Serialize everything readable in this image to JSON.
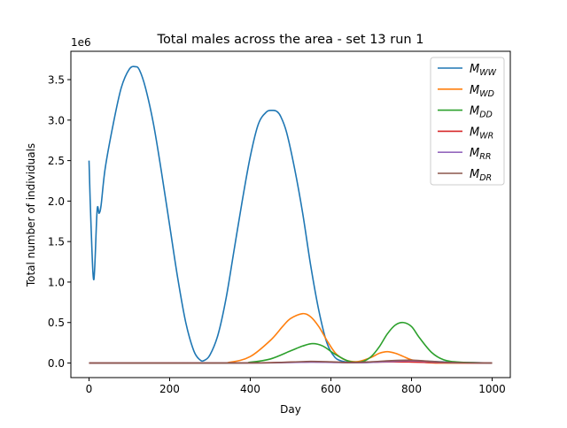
{
  "chart_data": {
    "type": "line",
    "title": "Total males across the area - set 13 run 1",
    "xlabel": "Day",
    "ylabel": "Total number of individuals",
    "y_multiplier_label": "1e6",
    "xlim": [
      -45,
      1045
    ],
    "ylim": [
      -0.18,
      3.85
    ],
    "x_ticks": [
      0,
      200,
      400,
      600,
      800,
      1000
    ],
    "x_tick_labels": [
      "0",
      "200",
      "400",
      "600",
      "800",
      "1000"
    ],
    "y_ticks": [
      0.0,
      0.5,
      1.0,
      1.5,
      2.0,
      2.5,
      3.0,
      3.5
    ],
    "y_tick_labels": [
      "0.0",
      "0.5",
      "1.0",
      "1.5",
      "2.0",
      "2.5",
      "3.0",
      "3.5"
    ],
    "grid": false,
    "legend_position": "top-right",
    "series": [
      {
        "name": "WW",
        "color": "#1f77b4",
        "x": [
          0,
          5,
          12,
          20,
          25,
          30,
          40,
          60,
          80,
          100,
          115,
          125,
          140,
          160,
          180,
          200,
          220,
          240,
          260,
          275,
          285,
          300,
          320,
          340,
          360,
          380,
          400,
          420,
          440,
          455,
          465,
          475,
          490,
          510,
          530,
          550,
          570,
          590,
          610,
          630,
          650,
          670,
          700,
          750,
          800,
          850,
          900,
          950,
          1000
        ],
        "y": [
          2.5,
          1.7,
          1.03,
          1.88,
          1.85,
          1.95,
          2.4,
          2.95,
          3.4,
          3.63,
          3.66,
          3.62,
          3.4,
          2.95,
          2.35,
          1.7,
          1.05,
          0.5,
          0.15,
          0.04,
          0.03,
          0.1,
          0.35,
          0.8,
          1.4,
          2.0,
          2.55,
          2.95,
          3.1,
          3.12,
          3.11,
          3.05,
          2.85,
          2.4,
          1.85,
          1.2,
          0.65,
          0.25,
          0.07,
          0.02,
          0.01,
          0.005,
          0.01,
          0.02,
          0.03,
          0.02,
          0.01,
          0.005,
          0.0
        ]
      },
      {
        "name": "WD",
        "color": "#ff7f0e",
        "x": [
          0,
          300,
          350,
          400,
          450,
          480,
          500,
          530,
          550,
          570,
          590,
          610,
          630,
          650,
          670,
          700,
          720,
          740,
          760,
          780,
          800,
          830,
          860,
          900,
          1000
        ],
        "y": [
          0,
          0,
          0.01,
          0.08,
          0.28,
          0.45,
          0.55,
          0.61,
          0.57,
          0.45,
          0.28,
          0.13,
          0.05,
          0.02,
          0.02,
          0.07,
          0.12,
          0.14,
          0.12,
          0.08,
          0.04,
          0.01,
          0.0,
          0.0,
          0.0
        ]
      },
      {
        "name": "DD",
        "color": "#2ca02c",
        "x": [
          0,
          350,
          400,
          450,
          500,
          530,
          555,
          580,
          610,
          640,
          660,
          680,
          700,
          720,
          740,
          760,
          780,
          800,
          820,
          850,
          880,
          920,
          1000
        ],
        "y": [
          0,
          0,
          0.01,
          0.05,
          0.15,
          0.21,
          0.24,
          0.21,
          0.11,
          0.03,
          0.01,
          0.02,
          0.08,
          0.2,
          0.36,
          0.47,
          0.5,
          0.45,
          0.31,
          0.13,
          0.04,
          0.01,
          0.0
        ]
      },
      {
        "name": "WR",
        "color": "#d62728",
        "x": [
          0,
          400,
          500,
          550,
          600,
          650,
          700,
          750,
          800,
          850,
          900,
          1000
        ],
        "y": [
          0,
          0.002,
          0.01,
          0.015,
          0.012,
          0.005,
          0.01,
          0.015,
          0.012,
          0.006,
          0.002,
          0.0
        ]
      },
      {
        "name": "RR",
        "color": "#9467bd",
        "x": [
          0,
          400,
          500,
          550,
          600,
          650,
          700,
          750,
          800,
          850,
          900,
          1000
        ],
        "y": [
          0,
          0.001,
          0.006,
          0.01,
          0.008,
          0.003,
          0.008,
          0.02,
          0.028,
          0.015,
          0.004,
          0.0
        ]
      },
      {
        "name": "DR",
        "color": "#8c564b",
        "x": [
          0,
          400,
          500,
          550,
          600,
          650,
          700,
          750,
          800,
          850,
          900,
          1000
        ],
        "y": [
          0,
          0.001,
          0.012,
          0.02,
          0.015,
          0.006,
          0.015,
          0.03,
          0.035,
          0.02,
          0.006,
          0.0
        ]
      }
    ]
  }
}
